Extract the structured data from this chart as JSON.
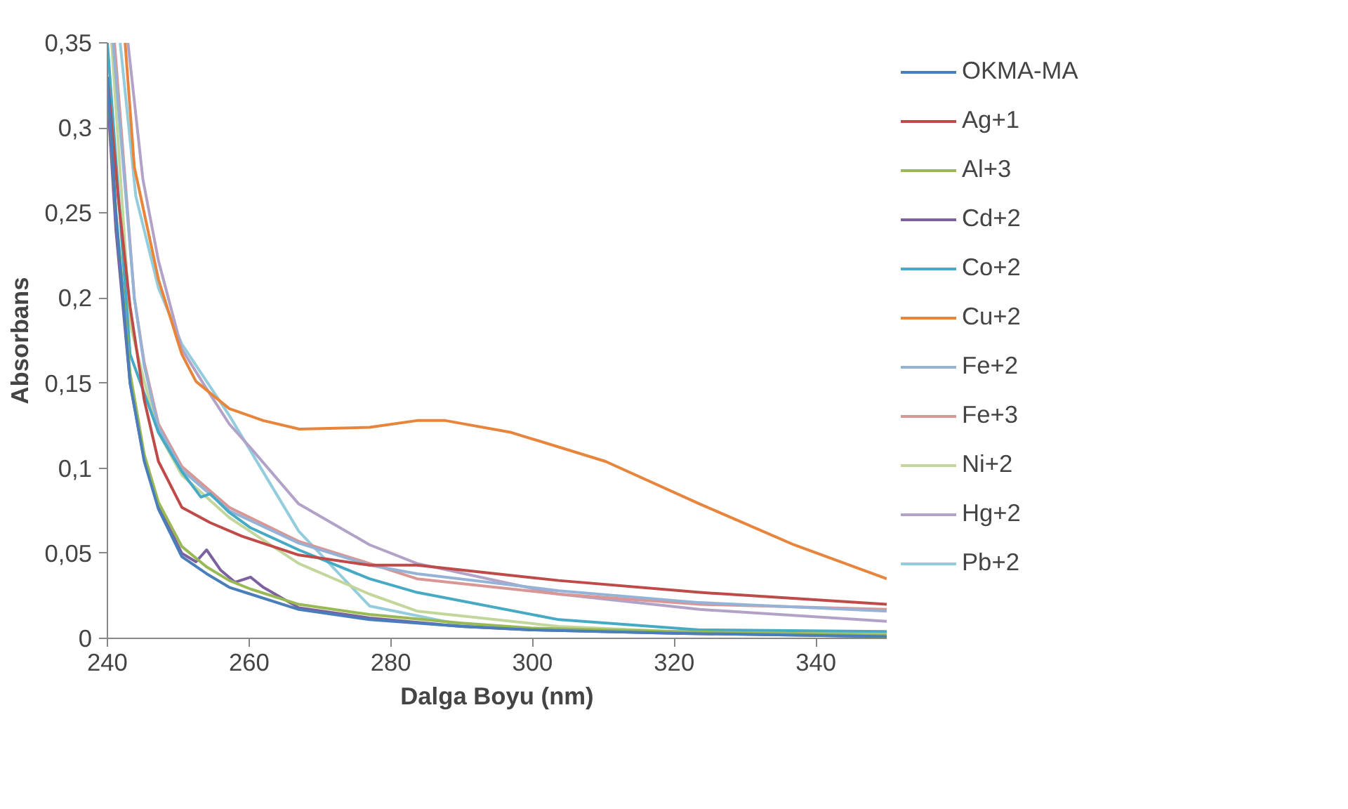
{
  "chart_data": {
    "type": "line",
    "xlabel": "Dalga Boyu (nm)",
    "ylabel": "Absorbans",
    "xlim": [
      240,
      350
    ],
    "ylim": [
      0,
      0.35
    ],
    "xticks": [
      240,
      260,
      280,
      300,
      320,
      340
    ],
    "yticks": [
      0,
      {
        "value": 0.05,
        "label": "0,05"
      },
      {
        "value": 0.1,
        "label": "0,1"
      },
      {
        "value": 0.15,
        "label": "0,15"
      },
      {
        "value": 0.2,
        "label": "0,2"
      },
      {
        "value": 0.25,
        "label": "0,25"
      },
      {
        "value": 0.3,
        "label": "0,3"
      },
      {
        "value": 0.35,
        "label": "0,35"
      }
    ],
    "grid": false,
    "legend": "right",
    "marker": "none",
    "line_style": "solid",
    "series": [
      {
        "name": "OKMA-MA",
        "color": "#4a7ebb",
        "x": [
          240,
          241.2,
          243.2,
          245.2,
          247.2,
          250.5,
          254,
          257.2,
          260.2,
          267,
          277,
          290,
          300,
          320,
          350
        ],
        "values": [
          0.33,
          0.25,
          0.15,
          0.104,
          0.076,
          0.048,
          0.038,
          0.03,
          0.026,
          0.017,
          0.011,
          0.007,
          0.005,
          0.003,
          0.001
        ]
      },
      {
        "name": "Ag+1",
        "color": "#be4b48",
        "x": [
          240,
          241.5,
          243.2,
          245.2,
          247.2,
          250.5,
          254.5,
          259,
          267,
          277,
          283.7,
          303.7,
          323.6,
          350
        ],
        "values": [
          0.33,
          0.26,
          0.195,
          0.14,
          0.104,
          0.077,
          0.068,
          0.06,
          0.049,
          0.043,
          0.043,
          0.034,
          0.027,
          0.02
        ]
      },
      {
        "name": "Al+3",
        "color": "#98b954",
        "x": [
          240,
          241.2,
          243.2,
          245.2,
          247.2,
          250.5,
          254,
          257.2,
          260.2,
          267,
          277,
          290,
          300,
          320,
          350
        ],
        "values": [
          0.33,
          0.25,
          0.156,
          0.108,
          0.08,
          0.054,
          0.042,
          0.034,
          0.029,
          0.02,
          0.014,
          0.009,
          0.006,
          0.004,
          0.002
        ]
      },
      {
        "name": "Cd+2",
        "color": "#7d60a0",
        "x": [
          240,
          241.2,
          243.2,
          245.2,
          247.2,
          250.5,
          252.5,
          254,
          256,
          258,
          260.2,
          262,
          267,
          277,
          290,
          300,
          320,
          350
        ],
        "values": [
          0.32,
          0.24,
          0.15,
          0.105,
          0.078,
          0.05,
          0.045,
          0.052,
          0.04,
          0.033,
          0.036,
          0.03,
          0.018,
          0.012,
          0.007,
          0.005,
          0.003,
          0.001
        ]
      },
      {
        "name": "Co+2",
        "color": "#46aac5",
        "x": [
          240,
          243.2,
          247.2,
          250.5,
          253.2,
          254.5,
          257.2,
          260.2,
          267,
          277,
          283.7,
          303.7,
          323.6,
          350
        ],
        "values": [
          0.35,
          0.167,
          0.121,
          0.098,
          0.083,
          0.085,
          0.074,
          0.065,
          0.052,
          0.035,
          0.027,
          0.011,
          0.005,
          0.004
        ]
      },
      {
        "name": "Cu+2",
        "color": "#e8853c",
        "x": [
          242.5,
          243.8,
          247.2,
          250.5,
          252.5,
          257.2,
          262,
          267.1,
          277,
          283.7,
          287.7,
          297,
          310.3,
          323.6,
          336.9,
          350
        ],
        "values": [
          0.35,
          0.277,
          0.211,
          0.167,
          0.151,
          0.135,
          0.128,
          0.123,
          0.124,
          0.128,
          0.128,
          0.121,
          0.104,
          0.079,
          0.055,
          0.035
        ]
      },
      {
        "name": "Fe+2",
        "color": "#95b3d7",
        "x": [
          240.8,
          243.8,
          245.2,
          247.2,
          250.5,
          257.2,
          267,
          277,
          283.7,
          303.7,
          323.6,
          350
        ],
        "values": [
          0.35,
          0.2,
          0.16,
          0.124,
          0.099,
          0.075,
          0.056,
          0.043,
          0.038,
          0.028,
          0.021,
          0.016
        ]
      },
      {
        "name": "Fe+3",
        "color": "#d99694",
        "x": [
          241,
          243.8,
          245.2,
          247.2,
          250.5,
          257.2,
          267,
          277,
          283.7,
          303.7,
          323.6,
          350
        ],
        "values": [
          0.35,
          0.2,
          0.162,
          0.126,
          0.101,
          0.077,
          0.057,
          0.044,
          0.035,
          0.026,
          0.02,
          0.017
        ]
      },
      {
        "name": "Ni+2",
        "color": "#c3d69b",
        "x": [
          240.6,
          243.2,
          245.2,
          247.2,
          250.5,
          257.2,
          267,
          277,
          283.7,
          303.7,
          320,
          350
        ],
        "values": [
          0.35,
          0.185,
          0.151,
          0.121,
          0.096,
          0.071,
          0.044,
          0.026,
          0.016,
          0.007,
          0.004,
          0.003
        ]
      },
      {
        "name": "Hg+2",
        "color": "#b3a2c7",
        "x": [
          242.9,
          245,
          247.2,
          250.5,
          253.8,
          257.2,
          260.2,
          267,
          277,
          283.7,
          303.7,
          323.6,
          350
        ],
        "values": [
          0.35,
          0.27,
          0.222,
          0.17,
          0.148,
          0.126,
          0.112,
          0.079,
          0.055,
          0.044,
          0.026,
          0.017,
          0.01
        ]
      },
      {
        "name": "Pb+2",
        "color": "#93cddd",
        "x": [
          241.8,
          244,
          247.2,
          250.5,
          257.2,
          267,
          277,
          290,
          300,
          320,
          350
        ],
        "values": [
          0.35,
          0.26,
          0.206,
          0.173,
          0.131,
          0.063,
          0.019,
          0.008,
          0.005,
          0.004,
          0.003
        ]
      }
    ]
  }
}
